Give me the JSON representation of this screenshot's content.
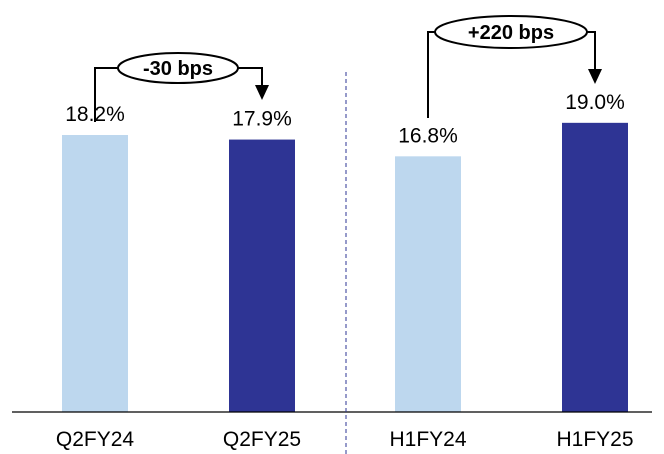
{
  "chart_data": {
    "type": "bar",
    "categories": [
      "Q2FY24",
      "Q2FY25",
      "H1FY24",
      "H1FY25"
    ],
    "values": [
      18.2,
      17.9,
      16.8,
      19.0
    ],
    "value_labels": [
      "18.2%",
      "17.9%",
      "16.8%",
      "19.0%"
    ],
    "colors": [
      "#bdd7ee",
      "#2e3494",
      "#bdd7ee",
      "#2e3494"
    ],
    "ylim": [
      0,
      20.5
    ],
    "grid": false,
    "divider": {
      "style": "dashed",
      "color": "#2e3494",
      "between": [
        "Q2FY25",
        "H1FY24"
      ]
    },
    "annotations": [
      {
        "text": "-30 bps",
        "from": "Q2FY24",
        "to": "Q2FY25"
      },
      {
        "text": "+220 bps",
        "from": "H1FY24",
        "to": "H1FY25"
      }
    ],
    "title": "",
    "xlabel": "",
    "ylabel": ""
  }
}
